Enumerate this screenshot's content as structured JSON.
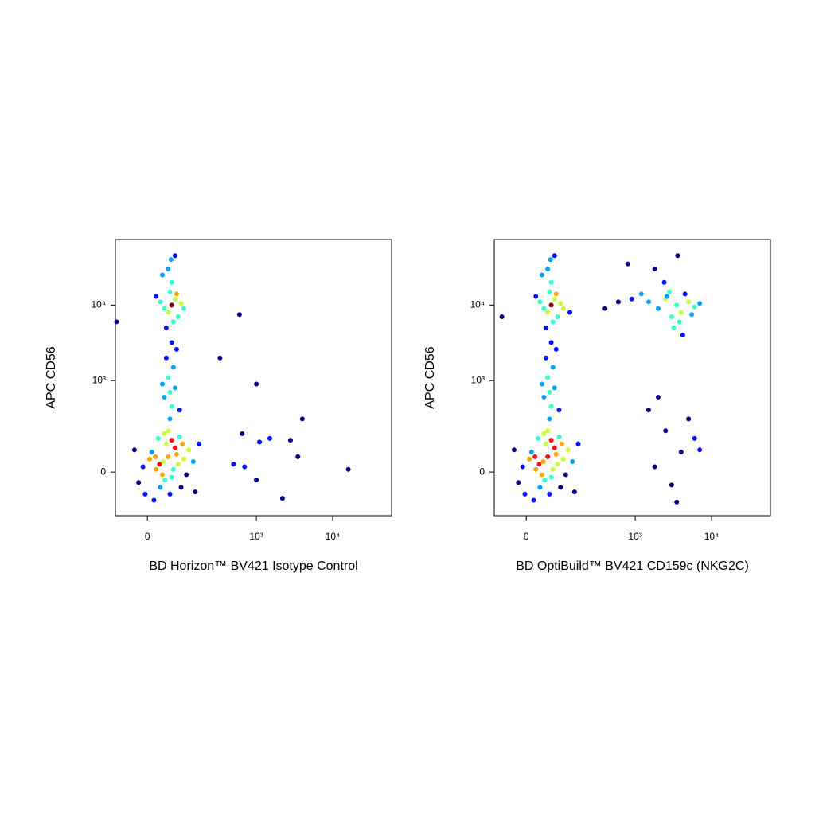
{
  "chart_data": [
    {
      "type": "scatter",
      "xlabel": "BD Horizon™ BV421 Isotype Control",
      "ylabel": "APC CD56",
      "xscale": "biexponential",
      "yscale": "biexponential",
      "colormap": "jet",
      "xlim": [
        -84,
        59000
      ],
      "ylim": [
        -218,
        73500
      ],
      "xticks": [
        0,
        {
          "value": 1000,
          "label": "10³"
        },
        {
          "value": 10000,
          "label": "10⁴"
        }
      ],
      "yticks": [
        0,
        {
          "value": 1000,
          "label": "10³"
        },
        {
          "value": 10000,
          "label": "10⁴"
        }
      ],
      "x": [
        37,
        20,
        50,
        60,
        10,
        80,
        30,
        45,
        -10,
        70,
        100,
        25,
        55,
        -20,
        90,
        120,
        15,
        40,
        65,
        5,
        35,
        75,
        -30,
        110,
        140,
        50,
        28,
        42,
        60,
        85,
        18,
        95,
        -5,
        150,
        170,
        55,
        60,
        40,
        70,
        50,
        65,
        45,
        75,
        60,
        35,
        85,
        55,
        60,
        50,
        70,
        40,
        80,
        55,
        65,
        30,
        90,
        75,
        45,
        60,
        50,
        70,
        35,
        100,
        20,
        58,
        600,
        330,
        1000,
        650,
        1500,
        2800,
        1100,
        3500,
        4000,
        16000,
        1000,
        2200,
        700,
        -80,
        500
      ],
      "y": [
        40,
        10,
        60,
        -20,
        80,
        30,
        -60,
        120,
        20,
        100,
        50,
        150,
        -90,
        -40,
        -60,
        90,
        -120,
        180,
        10,
        50,
        -10,
        70,
        90,
        -10,
        40,
        200,
        30,
        -30,
        140,
        160,
        60,
        120,
        -90,
        -80,
        120,
        300,
        450,
        600,
        800,
        1100,
        1500,
        2000,
        2600,
        3200,
        900,
        400,
        700,
        10000,
        8000,
        12000,
        9000,
        7000,
        15000,
        6000,
        11000,
        10500,
        14000,
        5000,
        20000,
        30000,
        45000,
        25000,
        9000,
        13000,
        40000,
        7500,
        2000,
        900,
        180,
        150,
        140,
        130,
        60,
        300,
        10,
        -30,
        -110,
        20,
        6000,
        30
      ]
    },
    {
      "type": "scatter",
      "xlabel": "BD OptiBuild™ BV421 CD159c (NKG2C)",
      "ylabel": "APC CD56",
      "xscale": "biexponential",
      "yscale": "biexponential",
      "colormap": "jet",
      "xlim": [
        -84,
        59000
      ],
      "ylim": [
        -218,
        73500
      ],
      "xticks": [
        0,
        {
          "value": 1000,
          "label": "10³"
        },
        {
          "value": 10000,
          "label": "10⁴"
        }
      ],
      "yticks": [
        0,
        {
          "value": 1000,
          "label": "10³"
        },
        {
          "value": 10000,
          "label": "10⁴"
        }
      ],
      "x": [
        40,
        22,
        52,
        62,
        12,
        82,
        32,
        47,
        -8,
        72,
        102,
        27,
        57,
        -18,
        92,
        122,
        17,
        42,
        67,
        7,
        37,
        77,
        -28,
        112,
        142,
        52,
        30,
        44,
        62,
        87,
        20,
        97,
        -3,
        152,
        172,
        57,
        62,
        42,
        72,
        52,
        67,
        47,
        77,
        62,
        37,
        87,
        57,
        62,
        52,
        72,
        42,
        82,
        57,
        67,
        32,
        92,
        77,
        47,
        62,
        52,
        72,
        37,
        102,
        22,
        60,
        130,
        -60,
        3500,
        4000,
        2500,
        5000,
        3000,
        4500,
        2000,
        6000,
        3800,
        2800,
        5500,
        1500,
        3200,
        7000,
        4200,
        2400,
        900,
        600,
        1200,
        400,
        1800,
        3600,
        800,
        2600,
        1500,
        2500,
        4000,
        5000,
        3000,
        2000,
        6000,
        7000,
        3500,
        1800
      ],
      "y": [
        40,
        10,
        60,
        -20,
        80,
        30,
        -60,
        120,
        20,
        100,
        50,
        150,
        -90,
        -40,
        -60,
        90,
        -120,
        180,
        10,
        50,
        -10,
        70,
        90,
        -10,
        40,
        200,
        30,
        -30,
        140,
        160,
        60,
        120,
        -90,
        -80,
        120,
        300,
        450,
        600,
        800,
        1100,
        1500,
        2000,
        2600,
        3200,
        900,
        400,
        700,
        10000,
        8000,
        12000,
        9000,
        7000,
        15000,
        6000,
        11000,
        10500,
        14000,
        5000,
        20000,
        30000,
        45000,
        25000,
        9000,
        13000,
        40000,
        8000,
        7000,
        10000,
        8000,
        12000,
        11000,
        7000,
        14000,
        9000,
        9500,
        6000,
        15000,
        7500,
        11000,
        5000,
        10500,
        4000,
        20000,
        12000,
        11000,
        14000,
        9000,
        30000,
        45000,
        35000,
        13000,
        400,
        200,
        80,
        300,
        -50,
        600,
        150,
        90,
        -130,
        20
      ]
    }
  ]
}
